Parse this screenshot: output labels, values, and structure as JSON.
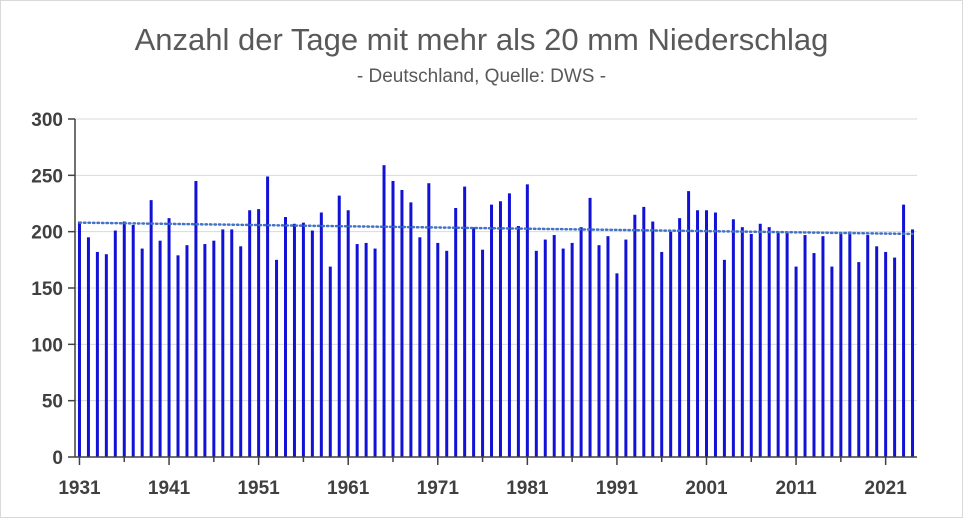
{
  "chart_data": {
    "type": "bar",
    "title": "Anzahl der Tage mit mehr als 20 mm Niederschlag",
    "subtitle": "- Deutschland, Quelle: DWS -",
    "xlabel": "",
    "ylabel": "",
    "ylim": [
      0,
      300
    ],
    "yticks": [
      0,
      50,
      100,
      150,
      200,
      250,
      300
    ],
    "xtick_labels": [
      "1931",
      "1941",
      "1951",
      "1961",
      "1971",
      "1981",
      "1991",
      "2001",
      "2011",
      "2021"
    ],
    "grid": true,
    "legend": "none",
    "bar_color": "#1212d6",
    "trend_color": "#4472c4",
    "trendline": {
      "type": "linear",
      "start": [
        1931,
        208
      ],
      "end": [
        2024,
        198
      ]
    },
    "x": [
      1931,
      1932,
      1933,
      1934,
      1935,
      1936,
      1937,
      1938,
      1939,
      1940,
      1941,
      1942,
      1943,
      1944,
      1945,
      1946,
      1947,
      1948,
      1949,
      1950,
      1951,
      1952,
      1953,
      1954,
      1955,
      1956,
      1957,
      1958,
      1959,
      1960,
      1961,
      1962,
      1963,
      1964,
      1965,
      1966,
      1967,
      1968,
      1969,
      1970,
      1971,
      1972,
      1973,
      1974,
      1975,
      1976,
      1977,
      1978,
      1979,
      1980,
      1981,
      1982,
      1983,
      1984,
      1985,
      1986,
      1987,
      1988,
      1989,
      1990,
      1991,
      1992,
      1993,
      1994,
      1995,
      1996,
      1997,
      1998,
      1999,
      2000,
      2001,
      2002,
      2003,
      2004,
      2005,
      2006,
      2007,
      2008,
      2009,
      2010,
      2011,
      2012,
      2013,
      2014,
      2015,
      2016,
      2017,
      2018,
      2019,
      2020,
      2021,
      2022,
      2023,
      2024
    ],
    "values": [
      209,
      195,
      182,
      180,
      201,
      209,
      206,
      185,
      228,
      192,
      212,
      179,
      188,
      245,
      189,
      192,
      202,
      202,
      187,
      219,
      220,
      249,
      175,
      213,
      207,
      208,
      201,
      217,
      169,
      232,
      219,
      189,
      190,
      185,
      259,
      245,
      237,
      226,
      195,
      243,
      190,
      183,
      221,
      240,
      204,
      184,
      224,
      227,
      234,
      205,
      242,
      183,
      193,
      197,
      185,
      190,
      204,
      230,
      188,
      196,
      163,
      193,
      215,
      222,
      209,
      182,
      200,
      212,
      236,
      219,
      219,
      217,
      175,
      211,
      204,
      198,
      207,
      204,
      200,
      200,
      169,
      197,
      181,
      196,
      169,
      199,
      200,
      173,
      197,
      187,
      182,
      177,
      224,
      202
    ]
  }
}
